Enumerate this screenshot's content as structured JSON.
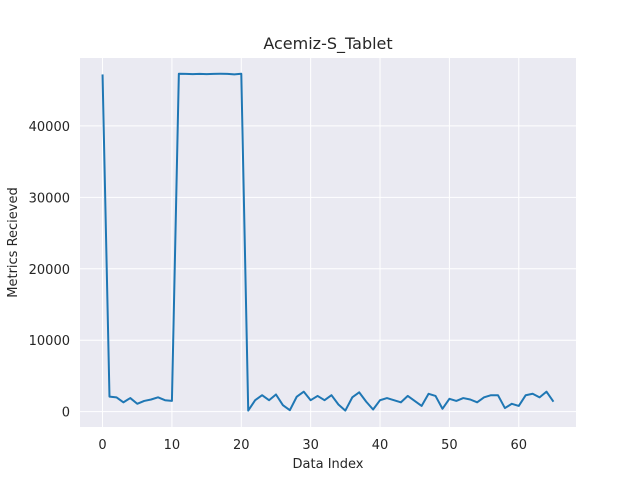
{
  "chart_data": {
    "type": "line",
    "title": "Acemiz-S_Tablet",
    "xlabel": "Data Index",
    "ylabel": "Metrics Recieved",
    "xlim": [
      -3.25,
      68.25
    ],
    "ylim": [
      -2150,
      49500
    ],
    "xticks": [
      0,
      10,
      20,
      30,
      40,
      50,
      60
    ],
    "yticks": [
      0,
      10000,
      20000,
      30000,
      40000
    ],
    "grid": true,
    "background": "#eaeaf2",
    "grid_color": "#ffffff",
    "line_color": "#1f77b4",
    "series": [
      {
        "name": "",
        "x": [
          0,
          1,
          2,
          3,
          4,
          5,
          6,
          7,
          8,
          9,
          10,
          11,
          12,
          13,
          14,
          15,
          16,
          17,
          18,
          19,
          20,
          21,
          22,
          23,
          24,
          25,
          26,
          27,
          28,
          29,
          30,
          31,
          32,
          33,
          34,
          35,
          36,
          37,
          38,
          39,
          40,
          41,
          42,
          43,
          44,
          45,
          46,
          47,
          48,
          49,
          50,
          51,
          52,
          53,
          54,
          55,
          56,
          57,
          58,
          59,
          60,
          61,
          62,
          63,
          64,
          65
        ],
        "values": [
          47200,
          2100,
          2000,
          1300,
          1900,
          1100,
          1500,
          1700,
          2000,
          1600,
          1500,
          47300,
          47280,
          47250,
          47270,
          47250,
          47280,
          47290,
          47280,
          47200,
          47290,
          150,
          1600,
          2300,
          1600,
          2400,
          900,
          200,
          2100,
          2800,
          1600,
          2200,
          1600,
          2300,
          1000,
          150,
          2000,
          2700,
          1400,
          300,
          1600,
          1900,
          1600,
          1300,
          2200,
          1500,
          800,
          2500,
          2200,
          400,
          1800,
          1500,
          1900,
          1700,
          1300,
          2000,
          2300,
          2300,
          500,
          1100,
          800,
          2300,
          2500,
          2000,
          2800,
          1400
        ]
      }
    ]
  }
}
